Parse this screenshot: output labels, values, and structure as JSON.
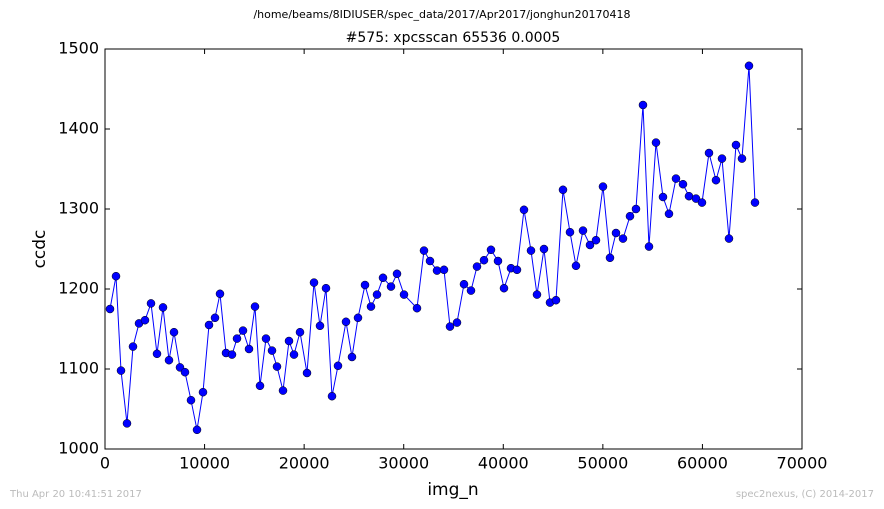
{
  "chart_data": {
    "type": "line",
    "subtitle": "/home/beams/8IDIUSER/spec_data/2017/Apr2017/jonghun20170418",
    "title": "#575: xpcsscan 65536 0.0005",
    "xlabel": "img_n",
    "ylabel": "ccdc",
    "annotations": [
      "Thu Apr 20 10:41:51 2017",
      "spec2nexus, (C) 2014-2017"
    ],
    "color": "#0000ff",
    "x": [
      502,
      1105,
      1607,
      2209,
      2812,
      3415,
      4017,
      4620,
      5222,
      5825,
      6427,
      6930,
      7532,
      8034,
      8637,
      9240,
      9842,
      10445,
      11047,
      11549,
      12152,
      12755,
      13257,
      13859,
      14462,
      15065,
      15567,
      16169,
      16772,
      17274,
      17877,
      18479,
      18981,
      19584,
      20287,
      20990,
      21592,
      22195,
      22798,
      23400,
      24204,
      24806,
      25409,
      26112,
      26714,
      27317,
      27920,
      28723,
      29326,
      30029,
      31334,
      32037,
      32640,
      33343,
      34046,
      34648,
      35351,
      36054,
      36757,
      37359,
      38062,
      38765,
      39468,
      40071,
      40774,
      41377,
      42080,
      42783,
      43385,
      44088,
      44691,
      45293,
      45996,
      46699,
      47302,
      48005,
      48708,
      49310,
      50013,
      50716,
      51319,
      52022,
      52725,
      53327,
      54030,
      54633,
      55336,
      56039,
      56641,
      57344,
      58047,
      58650,
      59353,
      59956,
      60659,
      61362,
      61964,
      62667,
      63370,
      63973,
      64676,
      65278
    ],
    "values": [
      1175,
      1216,
      1098,
      1032,
      1128,
      1157,
      1161,
      1182,
      1119,
      1177,
      1111,
      1146,
      1102,
      1096,
      1061,
      1024,
      1071,
      1155,
      1164,
      1194,
      1120,
      1118,
      1138,
      1148,
      1125,
      1178,
      1079,
      1138,
      1123,
      1103,
      1073,
      1135,
      1118,
      1146,
      1095,
      1208,
      1154,
      1201,
      1066,
      1104,
      1159,
      1115,
      1164,
      1205,
      1178,
      1193,
      1214,
      1203,
      1219,
      1193,
      1176,
      1248,
      1235,
      1223,
      1224,
      1153,
      1158,
      1206,
      1198,
      1228,
      1236,
      1249,
      1235,
      1201,
      1226,
      1224,
      1299,
      1248,
      1193,
      1250,
      1183,
      1186,
      1324,
      1271,
      1229,
      1273,
      1255,
      1261,
      1328,
      1239,
      1270,
      1263,
      1291,
      1300,
      1430,
      1253,
      1383,
      1315,
      1294,
      1338,
      1331,
      1316,
      1313,
      1308,
      1370,
      1336,
      1363,
      1263,
      1380,
      1363,
      1479,
      1308
    ],
    "xlim": [
      0,
      70000
    ],
    "xticks": [
      0,
      10000,
      20000,
      30000,
      40000,
      50000,
      60000,
      70000
    ],
    "ylim": [
      1000,
      1500
    ],
    "yticks": [
      1000,
      1100,
      1200,
      1300,
      1400,
      1500
    ]
  }
}
